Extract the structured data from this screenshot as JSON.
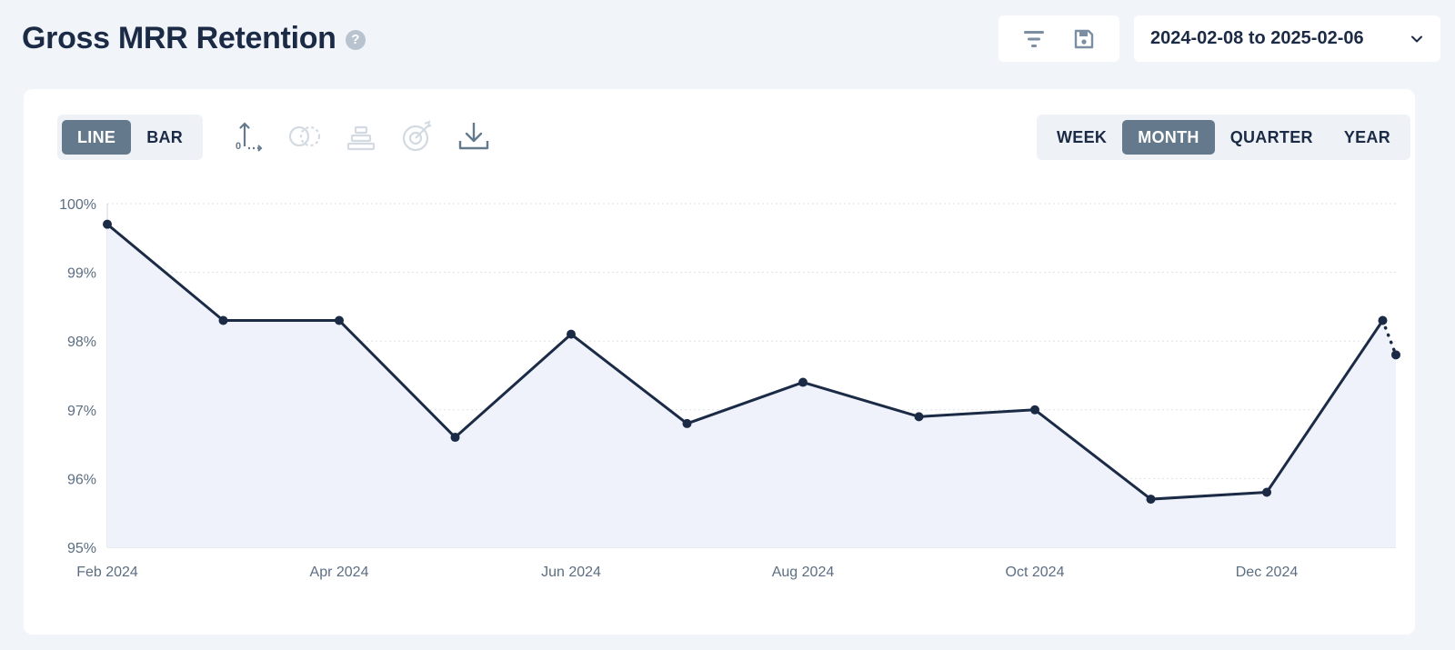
{
  "header": {
    "title": "Gross MRR Retention",
    "help_icon": "?",
    "date_range": "2024-02-08 to 2025-02-06"
  },
  "icons": {
    "filter": "filter-icon",
    "save": "save-icon",
    "chevron": "chevron-down-icon",
    "axis": "axis-icon",
    "compare": "compare-icon",
    "stack": "stack-icon",
    "goal": "goal-icon",
    "download": "download-icon"
  },
  "chart_type_toggle": {
    "options": [
      "LINE",
      "BAR"
    ],
    "selected": "LINE"
  },
  "period_toggle": {
    "options": [
      "WEEK",
      "MONTH",
      "QUARTER",
      "YEAR"
    ],
    "selected": "MONTH"
  },
  "colors": {
    "line": "#1c2b45",
    "fill": "#eff2fb",
    "active_toggle": "#64798c",
    "background": "#f1f4f9"
  },
  "chart_data": {
    "type": "line",
    "x": [
      "2024-02",
      "2024-03",
      "2024-04",
      "2024-05",
      "2024-06",
      "2024-07",
      "2024-08",
      "2024-09",
      "2024-10",
      "2024-11",
      "2024-12",
      "2025-01",
      "2025-02"
    ],
    "values": [
      99.7,
      98.3,
      98.3,
      96.6,
      98.1,
      96.8,
      97.4,
      96.9,
      97.0,
      95.7,
      95.8,
      98.3,
      97.8
    ],
    "ylim": [
      95,
      100
    ],
    "y_ticks": [
      "95%",
      "96%",
      "97%",
      "98%",
      "99%",
      "100%"
    ],
    "x_tick_labels": [
      "Feb 2024",
      "Apr 2024",
      "Jun 2024",
      "Aug 2024",
      "Oct 2024",
      "Dec 2024"
    ],
    "last_segment_dotted": true,
    "area_fill": true,
    "grid": "horizontal-dotted",
    "title": "",
    "xlabel": "",
    "ylabel": ""
  }
}
